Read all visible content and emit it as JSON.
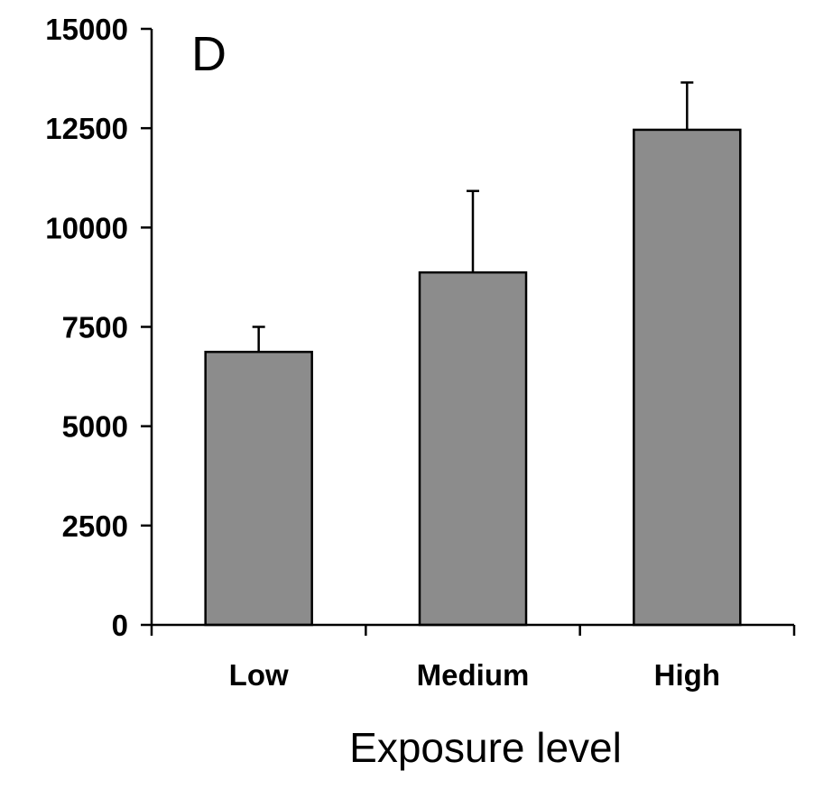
{
  "chart_data": {
    "type": "bar",
    "panel_label": "D",
    "categories": [
      "Low",
      "Medium",
      "High"
    ],
    "values": [
      6870,
      8870,
      12460
    ],
    "error_plus": [
      630,
      2050,
      1190
    ],
    "xlabel": "Exposure level",
    "ylabel": "",
    "ylim": [
      0,
      15000
    ],
    "yticks": [
      0,
      2500,
      5000,
      7500,
      10000,
      12500,
      15000
    ],
    "ytick_labels": [
      "0",
      "2500",
      "5000",
      "7500",
      "10000",
      "12500",
      "15000"
    ],
    "grid": false,
    "bar_color": "#8c8c8c",
    "edge_color": "#000000"
  }
}
